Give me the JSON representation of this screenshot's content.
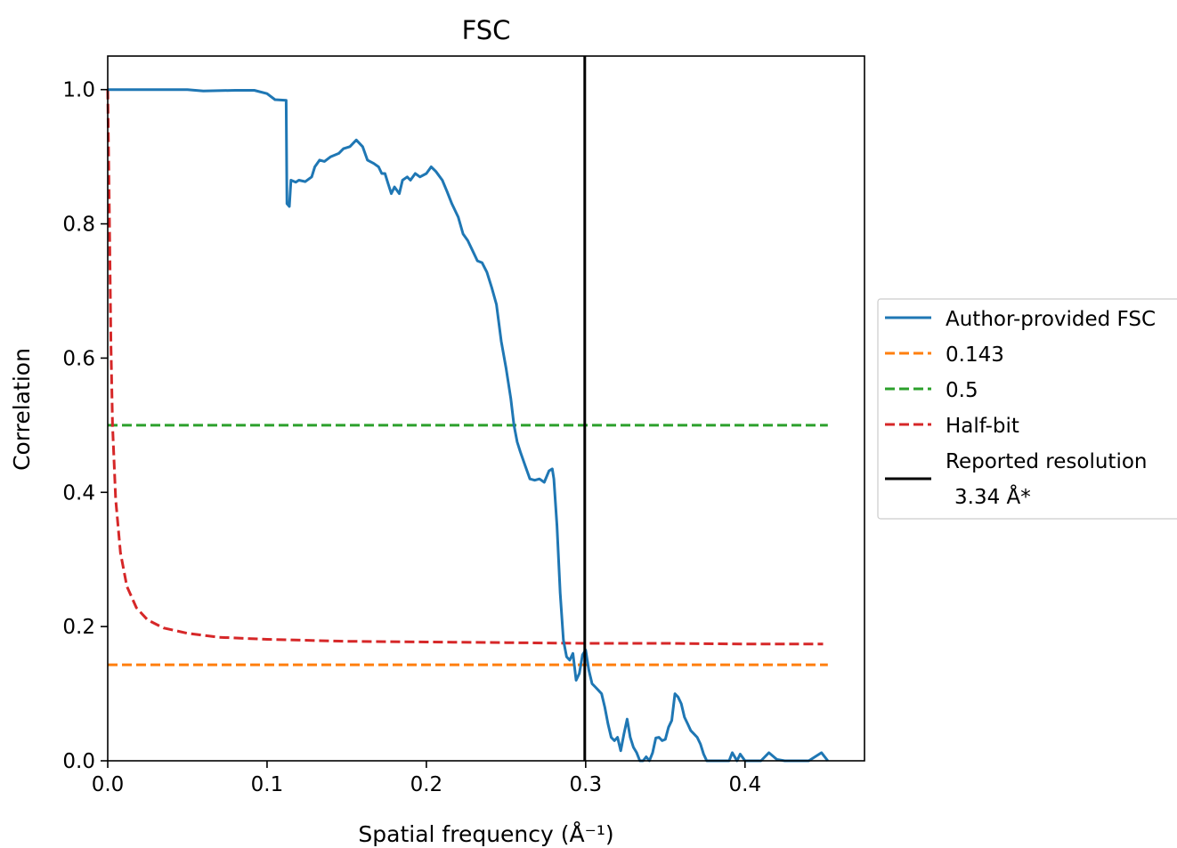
{
  "chart_data": {
    "type": "line",
    "title": "FSC",
    "xlabel": "Spatial frequency (Å⁻¹)",
    "ylabel": "Correlation",
    "xlim": [
      0.0,
      0.475
    ],
    "ylim": [
      0.0,
      1.05
    ],
    "x_ticks": [
      0.0,
      0.1,
      0.2,
      0.3,
      0.4
    ],
    "x_tick_labels": [
      "0.0",
      "0.1",
      "0.2",
      "0.3",
      "0.4"
    ],
    "y_ticks": [
      0.0,
      0.2,
      0.4,
      0.6,
      0.8,
      1.0
    ],
    "y_tick_labels": [
      "0.0",
      "0.2",
      "0.4",
      "0.6",
      "0.8",
      "1.0"
    ],
    "grid": false,
    "legend_position": "center-right outside",
    "series": [
      {
        "name": "Author-provided FSC",
        "color": "#1f77b4",
        "style": "solid",
        "points": [
          [
            0.0,
            1.0
          ],
          [
            0.02,
            1.0
          ],
          [
            0.05,
            1.0
          ],
          [
            0.06,
            0.998
          ],
          [
            0.08,
            0.999
          ],
          [
            0.092,
            0.999
          ],
          [
            0.1,
            0.994
          ],
          [
            0.105,
            0.985
          ],
          [
            0.112,
            0.984
          ],
          [
            0.1125,
            0.83
          ],
          [
            0.114,
            0.826
          ],
          [
            0.115,
            0.865
          ],
          [
            0.118,
            0.862
          ],
          [
            0.12,
            0.865
          ],
          [
            0.124,
            0.863
          ],
          [
            0.128,
            0.87
          ],
          [
            0.13,
            0.885
          ],
          [
            0.133,
            0.895
          ],
          [
            0.136,
            0.893
          ],
          [
            0.14,
            0.9
          ],
          [
            0.145,
            0.905
          ],
          [
            0.148,
            0.912
          ],
          [
            0.152,
            0.915
          ],
          [
            0.156,
            0.925
          ],
          [
            0.16,
            0.915
          ],
          [
            0.163,
            0.895
          ],
          [
            0.167,
            0.89
          ],
          [
            0.17,
            0.885
          ],
          [
            0.172,
            0.875
          ],
          [
            0.174,
            0.875
          ],
          [
            0.176,
            0.86
          ],
          [
            0.178,
            0.845
          ],
          [
            0.18,
            0.855
          ],
          [
            0.183,
            0.845
          ],
          [
            0.185,
            0.865
          ],
          [
            0.188,
            0.87
          ],
          [
            0.19,
            0.865
          ],
          [
            0.193,
            0.875
          ],
          [
            0.196,
            0.87
          ],
          [
            0.2,
            0.875
          ],
          [
            0.203,
            0.885
          ],
          [
            0.206,
            0.878
          ],
          [
            0.21,
            0.865
          ],
          [
            0.213,
            0.848
          ],
          [
            0.216,
            0.83
          ],
          [
            0.22,
            0.81
          ],
          [
            0.223,
            0.785
          ],
          [
            0.226,
            0.775
          ],
          [
            0.229,
            0.76
          ],
          [
            0.232,
            0.745
          ],
          [
            0.235,
            0.742
          ],
          [
            0.238,
            0.728
          ],
          [
            0.241,
            0.705
          ],
          [
            0.244,
            0.68
          ],
          [
            0.247,
            0.625
          ],
          [
            0.25,
            0.585
          ],
          [
            0.253,
            0.54
          ],
          [
            0.255,
            0.5
          ],
          [
            0.257,
            0.475
          ],
          [
            0.259,
            0.46
          ],
          [
            0.262,
            0.44
          ],
          [
            0.265,
            0.42
          ],
          [
            0.268,
            0.418
          ],
          [
            0.271,
            0.42
          ],
          [
            0.274,
            0.415
          ],
          [
            0.277,
            0.432
          ],
          [
            0.279,
            0.435
          ],
          [
            0.28,
            0.42
          ],
          [
            0.282,
            0.35
          ],
          [
            0.284,
            0.25
          ],
          [
            0.286,
            0.18
          ],
          [
            0.288,
            0.155
          ],
          [
            0.29,
            0.15
          ],
          [
            0.292,
            0.16
          ],
          [
            0.294,
            0.12
          ],
          [
            0.296,
            0.13
          ],
          [
            0.298,
            0.158
          ],
          [
            0.3,
            0.165
          ],
          [
            0.302,
            0.135
          ],
          [
            0.304,
            0.115
          ],
          [
            0.306,
            0.11
          ],
          [
            0.308,
            0.105
          ],
          [
            0.31,
            0.1
          ],
          [
            0.312,
            0.08
          ],
          [
            0.314,
            0.055
          ],
          [
            0.316,
            0.035
          ],
          [
            0.318,
            0.03
          ],
          [
            0.32,
            0.035
          ],
          [
            0.322,
            0.015
          ],
          [
            0.324,
            0.04
          ],
          [
            0.326,
            0.062
          ],
          [
            0.328,
            0.035
          ],
          [
            0.33,
            0.02
          ],
          [
            0.332,
            0.012
          ],
          [
            0.334,
            0.0
          ],
          [
            0.336,
            0.0
          ],
          [
            0.338,
            0.006
          ],
          [
            0.34,
            0.0
          ],
          [
            0.342,
            0.012
          ],
          [
            0.344,
            0.034
          ],
          [
            0.346,
            0.035
          ],
          [
            0.348,
            0.03
          ],
          [
            0.35,
            0.032
          ],
          [
            0.352,
            0.05
          ],
          [
            0.354,
            0.06
          ],
          [
            0.356,
            0.1
          ],
          [
            0.358,
            0.095
          ],
          [
            0.36,
            0.085
          ],
          [
            0.362,
            0.065
          ],
          [
            0.364,
            0.055
          ],
          [
            0.366,
            0.045
          ],
          [
            0.368,
            0.04
          ],
          [
            0.37,
            0.035
          ],
          [
            0.372,
            0.025
          ],
          [
            0.374,
            0.01
          ],
          [
            0.376,
            0.0
          ],
          [
            0.39,
            0.0
          ],
          [
            0.392,
            0.012
          ],
          [
            0.395,
            0.0
          ],
          [
            0.397,
            0.01
          ],
          [
            0.4,
            0.0
          ],
          [
            0.41,
            0.0
          ],
          [
            0.415,
            0.012
          ],
          [
            0.42,
            0.002
          ],
          [
            0.425,
            0.0
          ],
          [
            0.44,
            0.0
          ],
          [
            0.448,
            0.012
          ],
          [
            0.452,
            0.0
          ]
        ]
      },
      {
        "name": "0.143",
        "color": "#ff7f0e",
        "style": "dashed",
        "points": [
          [
            0.0,
            0.143
          ],
          [
            0.452,
            0.143
          ]
        ]
      },
      {
        "name": "0.5",
        "color": "#2ca02c",
        "style": "dashed",
        "points": [
          [
            0.0,
            0.5
          ],
          [
            0.452,
            0.5
          ]
        ]
      },
      {
        "name": "Half-bit",
        "color": "#d62728",
        "style": "dashed",
        "points": [
          [
            0.0,
            1.0
          ],
          [
            0.001,
            0.82
          ],
          [
            0.002,
            0.62
          ],
          [
            0.003,
            0.5
          ],
          [
            0.005,
            0.39
          ],
          [
            0.008,
            0.31
          ],
          [
            0.012,
            0.26
          ],
          [
            0.018,
            0.228
          ],
          [
            0.025,
            0.21
          ],
          [
            0.035,
            0.198
          ],
          [
            0.05,
            0.19
          ],
          [
            0.07,
            0.184
          ],
          [
            0.1,
            0.181
          ],
          [
            0.15,
            0.178
          ],
          [
            0.2,
            0.177
          ],
          [
            0.25,
            0.176
          ],
          [
            0.3,
            0.175
          ],
          [
            0.35,
            0.175
          ],
          [
            0.4,
            0.174
          ],
          [
            0.449,
            0.174
          ]
        ]
      },
      {
        "name": "Reported resolution\n 3.34 Å*",
        "color": "#000000",
        "style": "solid",
        "points": [
          [
            0.2994,
            0.0
          ],
          [
            0.2994,
            1.05
          ]
        ]
      }
    ]
  },
  "legend": {
    "items": [
      {
        "label": "Author-provided FSC",
        "color": "#1f77b4",
        "style": "solid"
      },
      {
        "label": "0.143",
        "color": "#ff7f0e",
        "style": "dashed"
      },
      {
        "label": "0.5",
        "color": "#2ca02c",
        "style": "dashed"
      },
      {
        "label": "Half-bit",
        "color": "#d62728",
        "style": "dashed"
      },
      {
        "label": "Reported resolution",
        "label2": "3.34 Å*",
        "color": "#000000",
        "style": "solid"
      }
    ]
  }
}
